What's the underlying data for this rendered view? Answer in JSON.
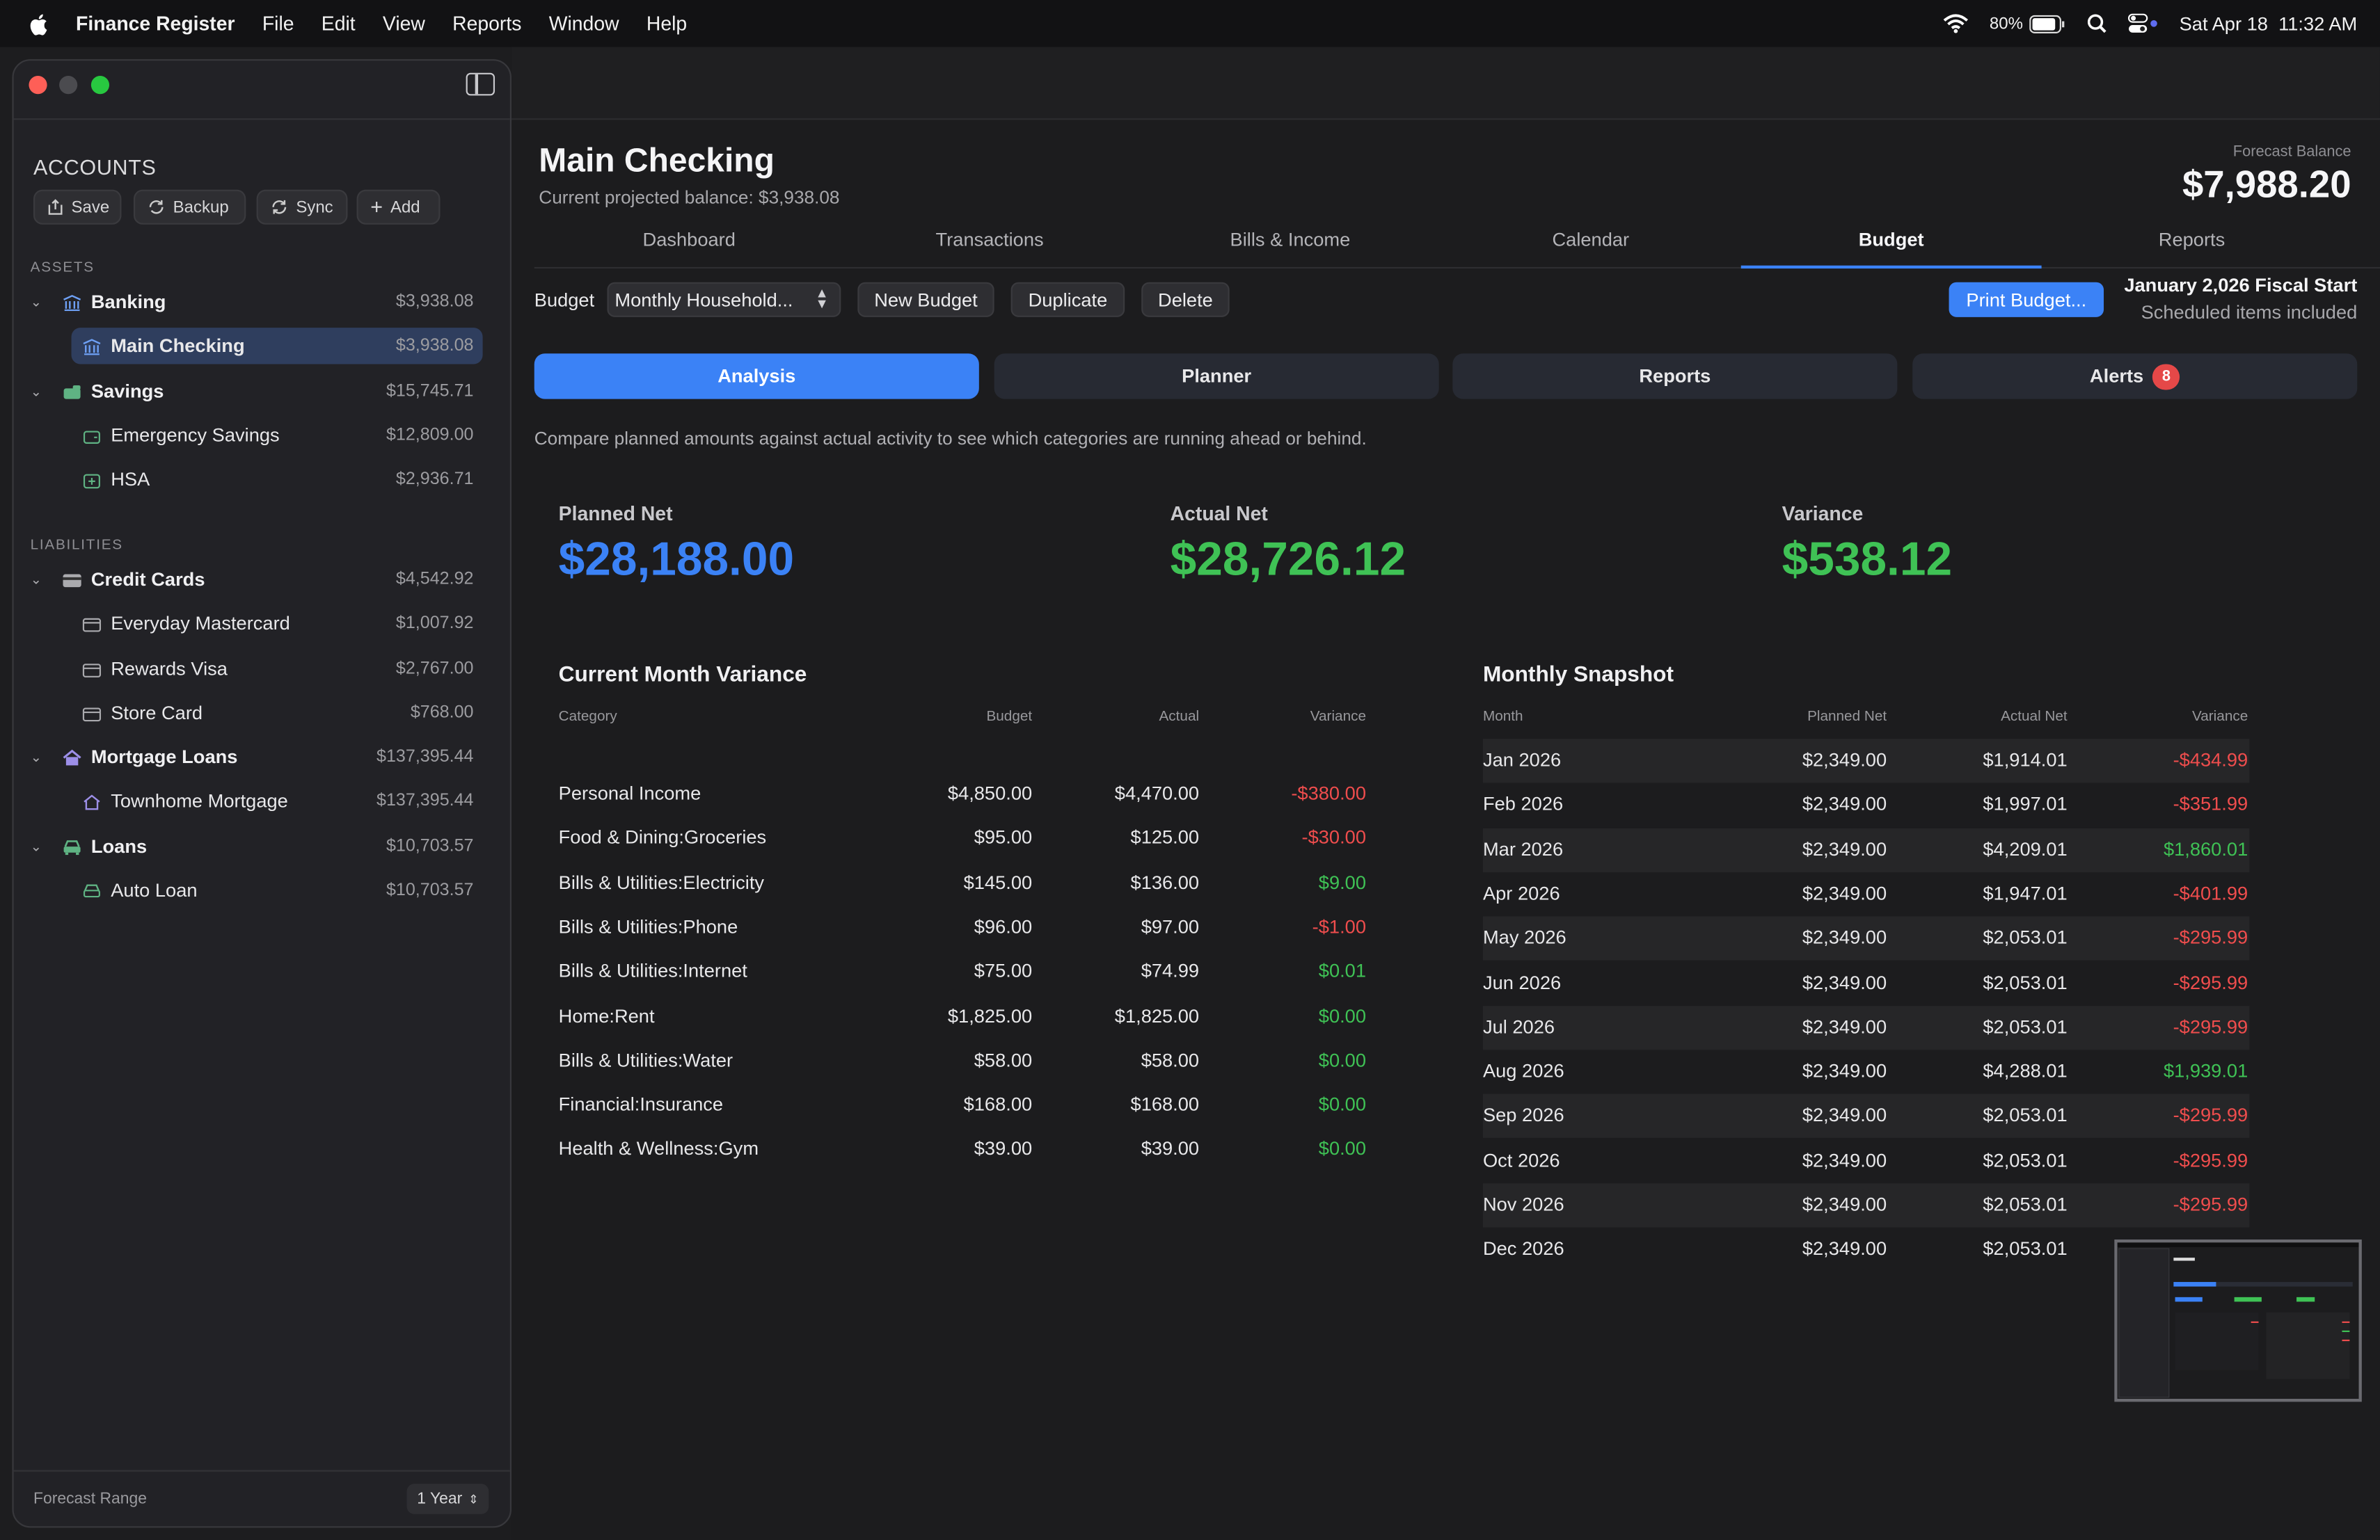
{
  "menubar": {
    "app": "Finance Register",
    "menus": [
      "File",
      "Edit",
      "View",
      "Reports",
      "Window",
      "Help"
    ],
    "battery": "80%",
    "datetime": "Sat Apr 18  11:32 AM"
  },
  "sidebar": {
    "title": "ACCOUNTS",
    "buttons": {
      "save": "Save",
      "backup": "Backup",
      "sync": "Sync",
      "add": "Add"
    },
    "assets_label": "ASSETS",
    "liabilities_label": "LIABILITIES",
    "banking": {
      "label": "Banking",
      "amount": "$3,938.08"
    },
    "main_checking": {
      "label": "Main Checking",
      "amount": "$3,938.08"
    },
    "savings": {
      "label": "Savings",
      "amount": "$15,745.71"
    },
    "emergency": {
      "label": "Emergency Savings",
      "amount": "$12,809.00"
    },
    "hsa": {
      "label": "HSA",
      "amount": "$2,936.71"
    },
    "credit_cards": {
      "label": "Credit Cards",
      "amount": "$4,542.92"
    },
    "everyday": {
      "label": "Everyday Mastercard",
      "amount": "$1,007.92"
    },
    "rewards": {
      "label": "Rewards Visa",
      "amount": "$2,767.00"
    },
    "store": {
      "label": "Store Card",
      "amount": "$768.00"
    },
    "mortgage_loans": {
      "label": "Mortgage Loans",
      "amount": "$137,395.44"
    },
    "townhome": {
      "label": "Townhome Mortgage",
      "amount": "$137,395.44"
    },
    "loans": {
      "label": "Loans",
      "amount": "$10,703.57"
    },
    "auto": {
      "label": "Auto Loan",
      "amount": "$10,703.57"
    },
    "forecast_range_label": "Forecast Range",
    "forecast_range_value": "1 Year"
  },
  "header": {
    "title": "Main Checking",
    "subtitle": "Current projected balance: $3,938.08",
    "forecast_label": "Forecast Balance",
    "forecast_value": "$7,988.20"
  },
  "tabs": [
    "Dashboard",
    "Transactions",
    "Bills & Income",
    "Calendar",
    "Budget",
    "Reports"
  ],
  "budgetbar": {
    "label": "Budget",
    "selected": "Monthly Household...",
    "new": "New Budget",
    "duplicate": "Duplicate",
    "delete": "Delete",
    "print": "Print Budget...",
    "fiscal": "January 2,026 Fiscal Start",
    "scheduled": "Scheduled items included"
  },
  "segments": {
    "analysis": "Analysis",
    "planner": "Planner",
    "reports": "Reports",
    "alerts": "Alerts",
    "alerts_count": "8"
  },
  "description": "Compare planned amounts against actual activity to see which categories are running ahead or behind.",
  "metrics": {
    "planned_label": "Planned Net",
    "planned_value": "$28,188.00",
    "actual_label": "Actual Net",
    "actual_value": "$28,726.12",
    "variance_label": "Variance",
    "variance_value": "$538.12"
  },
  "variance_table": {
    "title": "Current Month Variance",
    "headers": [
      "Category",
      "Budget",
      "Actual",
      "Variance"
    ],
    "rows": [
      [
        "Personal Income",
        "$4,850.00",
        "$4,470.00",
        "-$380.00"
      ],
      [
        "Food & Dining:Groceries",
        "$95.00",
        "$125.00",
        "-$30.00"
      ],
      [
        "Bills & Utilities:Electricity",
        "$145.00",
        "$136.00",
        "$9.00"
      ],
      [
        "Bills & Utilities:Phone",
        "$96.00",
        "$97.00",
        "-$1.00"
      ],
      [
        "Bills & Utilities:Internet",
        "$75.00",
        "$74.99",
        "$0.01"
      ],
      [
        "Home:Rent",
        "$1,825.00",
        "$1,825.00",
        "$0.00"
      ],
      [
        "Bills & Utilities:Water",
        "$58.00",
        "$58.00",
        "$0.00"
      ],
      [
        "Financial:Insurance",
        "$168.00",
        "$168.00",
        "$0.00"
      ],
      [
        "Health & Wellness:Gym",
        "$39.00",
        "$39.00",
        "$0.00"
      ]
    ]
  },
  "snapshot": {
    "title": "Monthly Snapshot",
    "headers": [
      "Month",
      "Planned Net",
      "Actual Net",
      "Variance"
    ],
    "rows": [
      [
        "Jan 2026",
        "$2,349.00",
        "$1,914.01",
        "-$434.99"
      ],
      [
        "Feb 2026",
        "$2,349.00",
        "$1,997.01",
        "-$351.99"
      ],
      [
        "Mar 2026",
        "$2,349.00",
        "$4,209.01",
        "$1,860.01"
      ],
      [
        "Apr 2026",
        "$2,349.00",
        "$1,947.01",
        "-$401.99"
      ],
      [
        "May 2026",
        "$2,349.00",
        "$2,053.01",
        "-$295.99"
      ],
      [
        "Jun 2026",
        "$2,349.00",
        "$2,053.01",
        "-$295.99"
      ],
      [
        "Jul 2026",
        "$2,349.00",
        "$2,053.01",
        "-$295.99"
      ],
      [
        "Aug 2026",
        "$2,349.00",
        "$4,288.01",
        "$1,939.01"
      ],
      [
        "Sep 2026",
        "$2,349.00",
        "$2,053.01",
        "-$295.99"
      ],
      [
        "Oct 2026",
        "$2,349.00",
        "$2,053.01",
        "-$295.99"
      ],
      [
        "Nov 2026",
        "$2,349.00",
        "$2,053.01",
        "-$295.99"
      ],
      [
        "Dec 2026",
        "$2,349.00",
        "$2,053.01",
        ""
      ]
    ]
  },
  "colors": {
    "accent": "#3b82f6",
    "positive": "#3fc255",
    "negative": "#ef4d4d"
  }
}
